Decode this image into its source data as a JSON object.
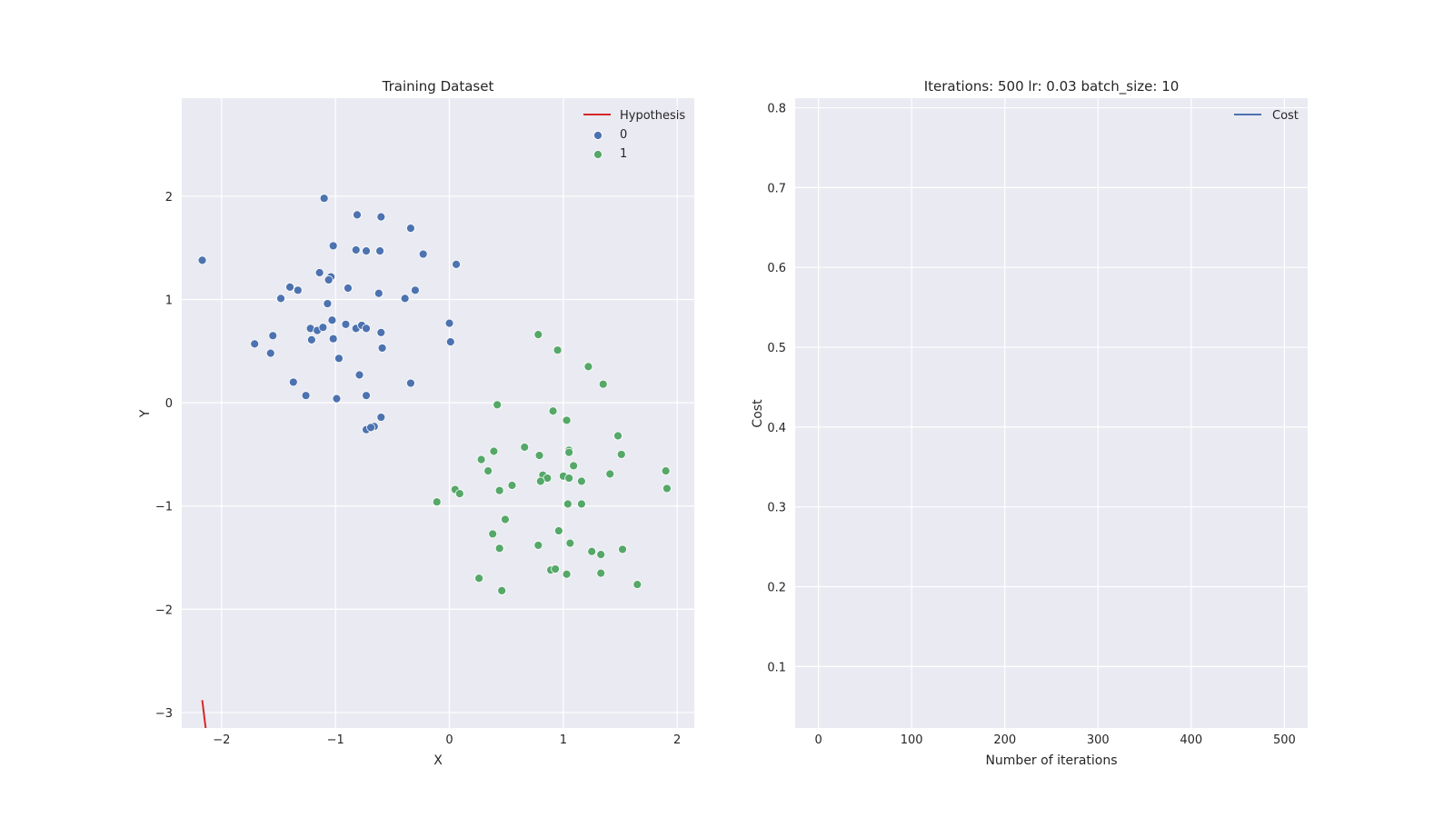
{
  "chart_data": [
    {
      "type": "scatter",
      "title": "Training Dataset",
      "xlabel": "X",
      "ylabel": "Y",
      "xlim": [
        -2.35,
        2.15
      ],
      "ylim": [
        -3.15,
        2.95
      ],
      "xticks": [
        -2,
        -1,
        0,
        1,
        2
      ],
      "yticks": [
        -3,
        -2,
        -1,
        0,
        1,
        2
      ],
      "grid": true,
      "legend_position": "top-right",
      "legend": [
        "Hypothesis",
        "0",
        "1"
      ],
      "colors": {
        "hypothesis": "#d62728",
        "0": "#4c72b0",
        "1": "#55a868",
        "axes_bg": "#eaeaf2"
      },
      "hypothesis_line": {
        "x": [
          -2.17,
          -2.14
        ],
        "y": [
          -2.88,
          -3.15
        ]
      },
      "series": [
        {
          "name": "0",
          "points": [
            [
              -2.17,
              1.38
            ],
            [
              -1.1,
              1.98
            ],
            [
              -0.81,
              1.82
            ],
            [
              -0.6,
              1.8
            ],
            [
              -0.34,
              1.69
            ],
            [
              -1.02,
              1.52
            ],
            [
              -0.82,
              1.48
            ],
            [
              -0.73,
              1.47
            ],
            [
              -0.61,
              1.47
            ],
            [
              -0.23,
              1.44
            ],
            [
              0.06,
              1.34
            ],
            [
              -1.14,
              1.26
            ],
            [
              -1.04,
              1.22
            ],
            [
              -1.06,
              1.19
            ],
            [
              -1.4,
              1.12
            ],
            [
              -1.33,
              1.09
            ],
            [
              -0.89,
              1.11
            ],
            [
              -0.3,
              1.09
            ],
            [
              -0.62,
              1.06
            ],
            [
              -1.48,
              1.01
            ],
            [
              -0.39,
              1.01
            ],
            [
              -1.07,
              0.96
            ],
            [
              -1.03,
              0.8
            ],
            [
              -0.91,
              0.76
            ],
            [
              -0.82,
              0.72
            ],
            [
              -0.77,
              0.75
            ],
            [
              -0.73,
              0.72
            ],
            [
              -1.22,
              0.72
            ],
            [
              -1.16,
              0.7
            ],
            [
              -1.11,
              0.73
            ],
            [
              -0.6,
              0.68
            ],
            [
              -1.55,
              0.65
            ],
            [
              -1.02,
              0.62
            ],
            [
              -1.21,
              0.61
            ],
            [
              0.0,
              0.77
            ],
            [
              0.01,
              0.59
            ],
            [
              -1.71,
              0.57
            ],
            [
              -0.59,
              0.53
            ],
            [
              -1.57,
              0.48
            ],
            [
              -0.97,
              0.43
            ],
            [
              -0.79,
              0.27
            ],
            [
              -1.37,
              0.2
            ],
            [
              -0.34,
              0.19
            ],
            [
              -1.26,
              0.07
            ],
            [
              -0.73,
              0.07
            ],
            [
              -0.99,
              0.04
            ],
            [
              -0.6,
              -0.14
            ],
            [
              -0.66,
              -0.23
            ],
            [
              -0.73,
              -0.26
            ],
            [
              -0.69,
              -0.24
            ]
          ]
        },
        {
          "name": "1",
          "points": [
            [
              0.78,
              0.66
            ],
            [
              0.95,
              0.51
            ],
            [
              1.22,
              0.35
            ],
            [
              1.35,
              0.18
            ],
            [
              0.42,
              -0.02
            ],
            [
              0.91,
              -0.08
            ],
            [
              1.03,
              -0.17
            ],
            [
              1.48,
              -0.32
            ],
            [
              0.66,
              -0.43
            ],
            [
              0.39,
              -0.47
            ],
            [
              1.05,
              -0.46
            ],
            [
              1.05,
              -0.48
            ],
            [
              0.79,
              -0.51
            ],
            [
              1.51,
              -0.5
            ],
            [
              0.28,
              -0.55
            ],
            [
              1.09,
              -0.61
            ],
            [
              0.34,
              -0.66
            ],
            [
              1.41,
              -0.69
            ],
            [
              1.9,
              -0.66
            ],
            [
              0.82,
              -0.7
            ],
            [
              0.86,
              -0.73
            ],
            [
              1.0,
              -0.71
            ],
            [
              1.05,
              -0.73
            ],
            [
              0.8,
              -0.76
            ],
            [
              1.16,
              -0.76
            ],
            [
              0.55,
              -0.8
            ],
            [
              0.44,
              -0.85
            ],
            [
              0.05,
              -0.84
            ],
            [
              1.91,
              -0.83
            ],
            [
              0.09,
              -0.88
            ],
            [
              -0.11,
              -0.96
            ],
            [
              1.04,
              -0.98
            ],
            [
              1.16,
              -0.98
            ],
            [
              0.49,
              -1.13
            ],
            [
              0.96,
              -1.24
            ],
            [
              0.38,
              -1.27
            ],
            [
              1.06,
              -1.36
            ],
            [
              0.78,
              -1.38
            ],
            [
              0.44,
              -1.41
            ],
            [
              1.25,
              -1.44
            ],
            [
              1.33,
              -1.47
            ],
            [
              1.52,
              -1.42
            ],
            [
              0.89,
              -1.62
            ],
            [
              0.93,
              -1.61
            ],
            [
              1.03,
              -1.66
            ],
            [
              1.33,
              -1.65
            ],
            [
              0.26,
              -1.7
            ],
            [
              1.65,
              -1.76
            ],
            [
              0.46,
              -1.82
            ]
          ]
        }
      ]
    },
    {
      "type": "line",
      "title": "Iterations: 500 lr: 0.03 batch_size: 10",
      "xlabel": "Number of iterations",
      "ylabel": "Cost",
      "xlim": [
        -25,
        525
      ],
      "ylim": [
        0.023,
        0.812
      ],
      "xticks": [
        0,
        100,
        200,
        300,
        400,
        500
      ],
      "yticks": [
        0.1,
        0.2,
        0.3,
        0.4,
        0.5,
        0.6,
        0.7,
        0.8
      ],
      "grid": true,
      "legend_position": "top-right",
      "legend": [
        "Cost"
      ],
      "colors": {
        "Cost": "#4c72b0",
        "axes_bg": "#eaeaf2"
      },
      "series": [
        {
          "name": "Cost",
          "x": [],
          "y": []
        }
      ]
    }
  ]
}
